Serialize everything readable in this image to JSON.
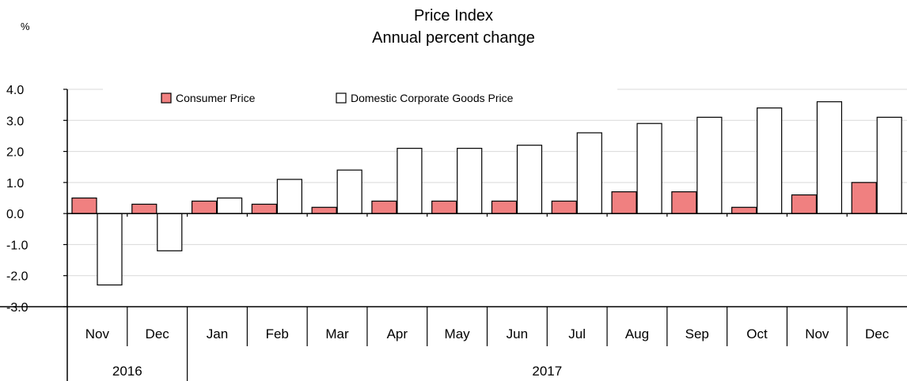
{
  "chart_data": {
    "type": "bar",
    "title": "Price Index",
    "subtitle": "Annual percent change",
    "unit_label": "%",
    "categories": [
      "Nov",
      "Dec",
      "Jan",
      "Feb",
      "Mar",
      "Apr",
      "May",
      "Jun",
      "Jul",
      "Aug",
      "Sep",
      "Oct",
      "Nov",
      "Dec"
    ],
    "year_groups": [
      {
        "label": "2016",
        "start": 0,
        "end": 1
      },
      {
        "label": "2017",
        "start": 2,
        "end": 13
      }
    ],
    "series": [
      {
        "name": "Consumer Price",
        "color": "#f08080",
        "values": [
          0.5,
          0.3,
          0.4,
          0.3,
          0.2,
          0.4,
          0.4,
          0.4,
          0.4,
          0.7,
          0.7,
          0.2,
          0.6,
          1.0
        ]
      },
      {
        "name": "Domestic Corporate Goods Price",
        "color": "#ffffff",
        "values": [
          -2.3,
          -1.2,
          0.5,
          1.1,
          1.4,
          2.1,
          2.1,
          2.2,
          2.6,
          2.9,
          3.1,
          3.4,
          3.6,
          3.1
        ]
      }
    ],
    "ylim": [
      -3.0,
      4.0
    ],
    "yticks": [
      "4.0",
      "3.0",
      "2.0",
      "1.0",
      "0.0",
      "-1.0",
      "-2.0",
      "-3.0"
    ],
    "grid": true,
    "legend": "top-center"
  }
}
